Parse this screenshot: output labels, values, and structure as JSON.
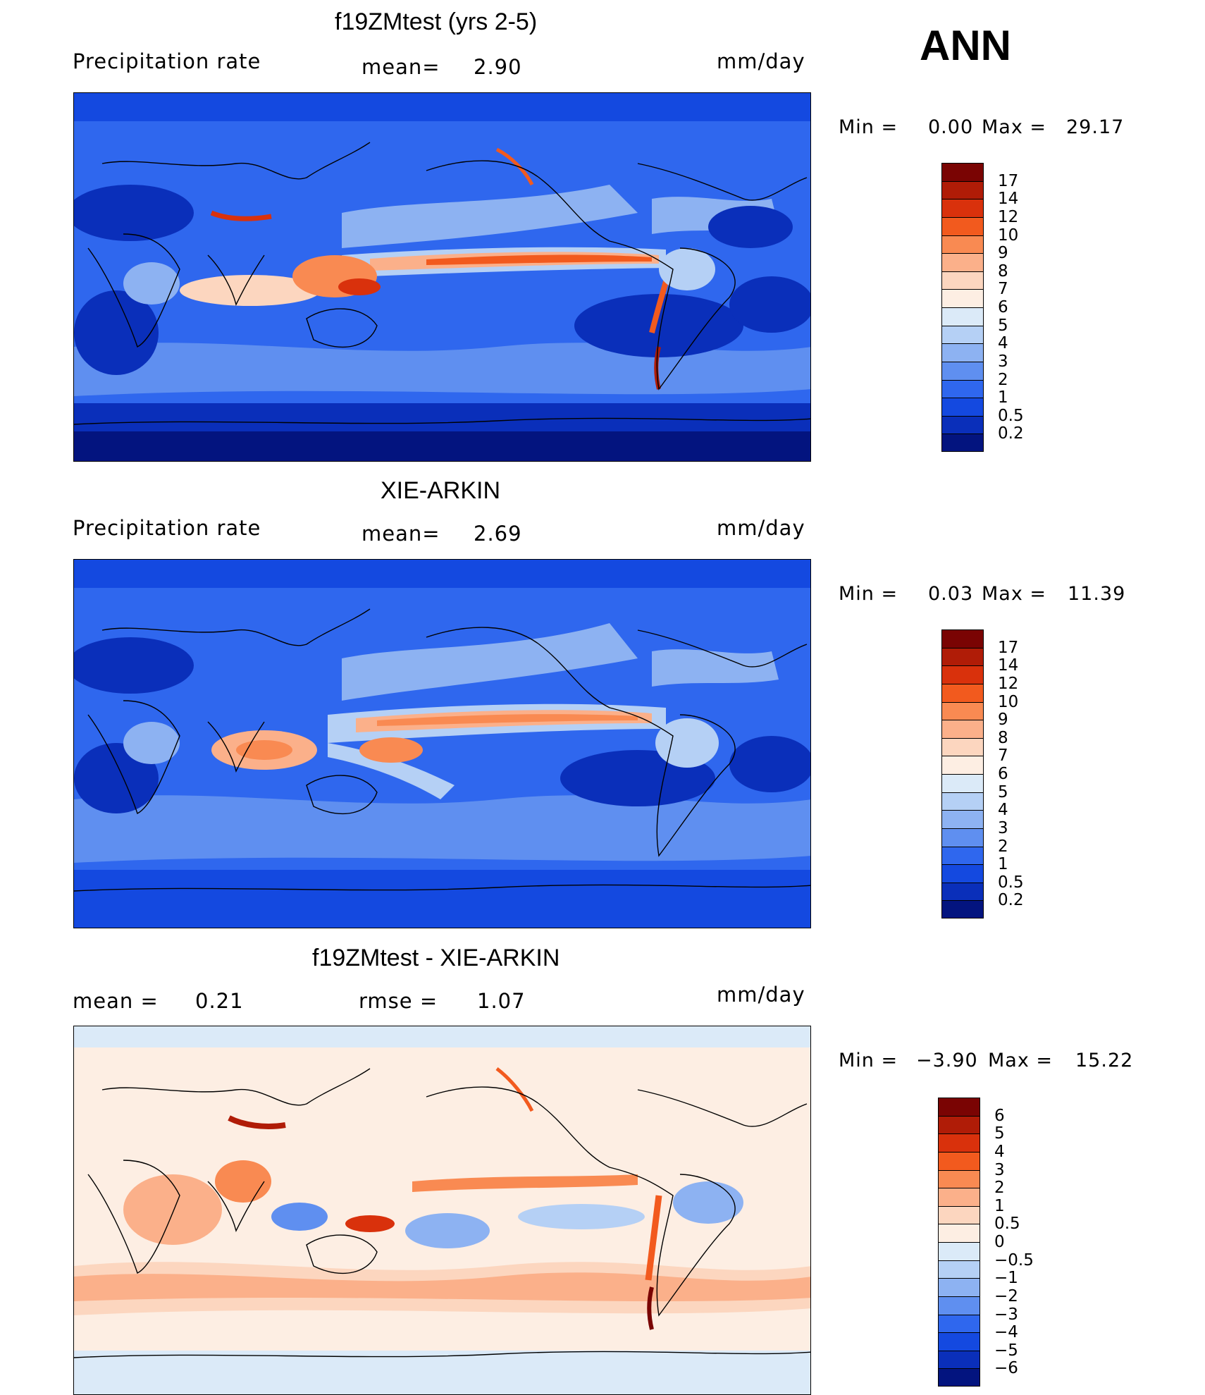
{
  "season": "ANN",
  "units_label": "mm/day",
  "panels": [
    {
      "title": "f19ZMtest (yrs 2-5)",
      "left_label": "Precipitation  rate",
      "mid_label": "mean=",
      "mid_value": "2.90",
      "right_label": "mm/day",
      "min_label": "Min  =",
      "min_value": "0.00",
      "max_label": "Max  =",
      "max_value": "29.17",
      "palette": "precip",
      "colorbar_levels": [
        "17",
        "14",
        "12",
        "10",
        "9",
        "8",
        "7",
        "6",
        "5",
        "4",
        "3",
        "2",
        "1",
        "0.5",
        "0.2"
      ],
      "colorbar_colors": [
        "#7a0403",
        "#b01c07",
        "#d9310c",
        "#f25a1e",
        "#f98a52",
        "#fbb08a",
        "#fcd6bf",
        "#fdeee3",
        "#dbeaf8",
        "#b5d0f5",
        "#8db2f2",
        "#5f8ff0",
        "#2f67ee",
        "#1449e0",
        "#0a2fba",
        "#03147f"
      ]
    },
    {
      "title": "XIE-ARKIN",
      "left_label": "Precipitation  rate",
      "mid_label": "mean=",
      "mid_value": "2.69",
      "right_label": "mm/day",
      "min_label": "Min  =",
      "min_value": "0.03",
      "max_label": "Max  =",
      "max_value": "11.39",
      "palette": "precip",
      "colorbar_levels": [
        "17",
        "14",
        "12",
        "10",
        "9",
        "8",
        "7",
        "6",
        "5",
        "4",
        "3",
        "2",
        "1",
        "0.5",
        "0.2"
      ],
      "colorbar_colors": [
        "#7a0403",
        "#b01c07",
        "#d9310c",
        "#f25a1e",
        "#f98a52",
        "#fbb08a",
        "#fcd6bf",
        "#fdeee3",
        "#dbeaf8",
        "#b5d0f5",
        "#8db2f2",
        "#5f8ff0",
        "#2f67ee",
        "#1449e0",
        "#0a2fba",
        "#03147f"
      ]
    },
    {
      "title": "f19ZMtest - XIE-ARKIN",
      "left_label": "mean  =",
      "left_value": "0.21",
      "mid_label": "rmse  =",
      "mid_value": "1.07",
      "right_label": "mm/day",
      "min_label": "Min  =",
      "min_value": "−3.90",
      "max_label": "Max  =",
      "max_value": "15.22",
      "palette": "diff",
      "colorbar_levels": [
        "6",
        "5",
        "4",
        "3",
        "2",
        "1",
        "0.5",
        "0",
        "−0.5",
        "−1",
        "−2",
        "−3",
        "−4",
        "−5",
        "−6"
      ],
      "colorbar_colors": [
        "#7a0403",
        "#b01c07",
        "#d9310c",
        "#f25a1e",
        "#f98a52",
        "#fbb08a",
        "#fcd6bf",
        "#fdeee3",
        "#dbeaf8",
        "#b5d0f5",
        "#8db2f2",
        "#5f8ff0",
        "#2f67ee",
        "#1449e0",
        "#0a2fba",
        "#03147f"
      ]
    }
  ]
}
